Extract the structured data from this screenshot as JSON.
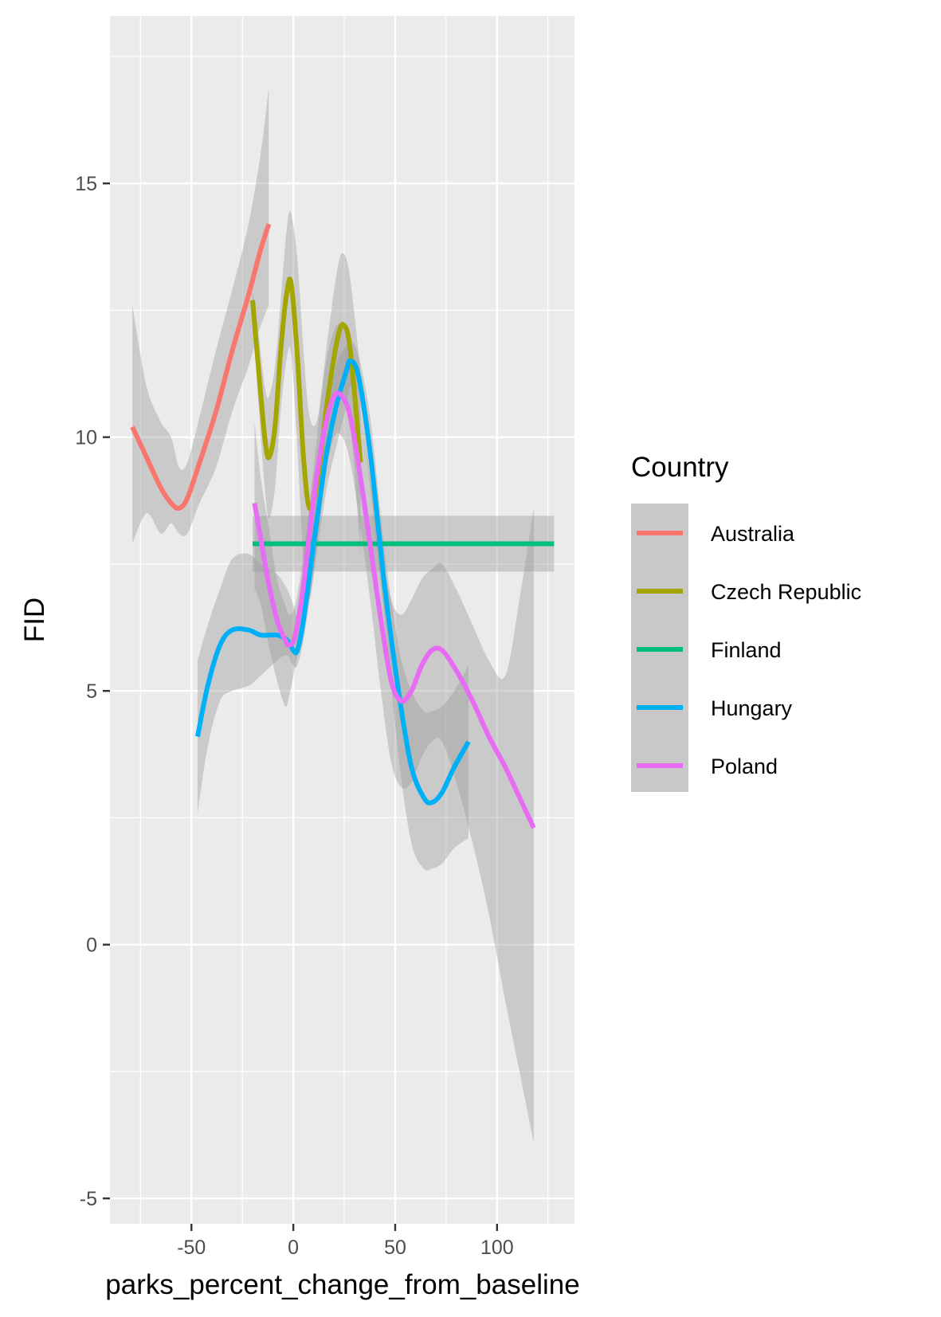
{
  "chart_data": {
    "type": "line",
    "title": "",
    "xlabel": "parks_percent_change_from_baseline",
    "ylabel": "FID",
    "xlim": [
      -90,
      138
    ],
    "ylim": [
      -5.5,
      18.3
    ],
    "x_ticks": [
      -50,
      0,
      50,
      100
    ],
    "x_tick_labels": [
      "-50",
      "0",
      "50",
      "100"
    ],
    "y_ticks": [
      -5,
      0,
      5,
      10,
      15
    ],
    "y_tick_labels": [
      "-5",
      "0",
      "5",
      "10",
      "15"
    ],
    "grid": true,
    "legend": {
      "title": "Country",
      "position": "right"
    },
    "series": [
      {
        "name": "Australia",
        "color": "#F8766D",
        "points": [
          [
            -79,
            10.2
          ],
          [
            -72,
            9.6
          ],
          [
            -65,
            9.0
          ],
          [
            -60,
            8.7
          ],
          [
            -56,
            8.6
          ],
          [
            -52,
            8.8
          ],
          [
            -46,
            9.5
          ],
          [
            -38,
            10.5
          ],
          [
            -30,
            11.7
          ],
          [
            -22,
            12.8
          ],
          [
            -16,
            13.7
          ],
          [
            -12,
            14.2
          ]
        ],
        "band_upper": [
          12.6,
          11.0,
          10.3,
          10.0,
          9.4,
          9.5,
          10.4,
          11.7,
          12.9,
          14.2,
          15.6,
          16.9
        ],
        "band_lower": [
          7.9,
          8.5,
          8.1,
          8.3,
          8.1,
          8.1,
          8.7,
          9.4,
          10.5,
          11.4,
          12.2,
          12.6
        ]
      },
      {
        "name": "Czech Republic",
        "color": "#A3A500",
        "points": [
          [
            -20,
            12.7
          ],
          [
            -17,
            11.3
          ],
          [
            -14,
            10.0
          ],
          [
            -12,
            9.6
          ],
          [
            -9,
            10.2
          ],
          [
            -6,
            11.8
          ],
          [
            -3,
            12.9
          ],
          [
            -1,
            13.0
          ],
          [
            2,
            11.6
          ],
          [
            5,
            9.6
          ],
          [
            8,
            8.6
          ],
          [
            12,
            9.2
          ],
          [
            17,
            10.8
          ],
          [
            22,
            12.0
          ],
          [
            25,
            12.2
          ],
          [
            28,
            11.7
          ],
          [
            33,
            9.5
          ]
        ],
        "band_upper": [
          12.9,
          12.0,
          11.0,
          10.8,
          11.4,
          12.8,
          14.2,
          14.4,
          13.5,
          11.7,
          10.4,
          10.4,
          12.0,
          13.4,
          13.6,
          13.1,
          11.3
        ],
        "band_lower": [
          12.5,
          10.6,
          9.0,
          8.4,
          9.0,
          10.6,
          11.6,
          11.6,
          9.8,
          7.5,
          6.8,
          8.0,
          9.6,
          10.6,
          10.8,
          10.3,
          7.7
        ]
      },
      {
        "name": "Finland",
        "color": "#00BF7D",
        "points": [
          [
            -20,
            7.9
          ],
          [
            128,
            7.9
          ]
        ],
        "band_upper": [
          8.45,
          8.45
        ],
        "band_lower": [
          7.35,
          7.35
        ]
      },
      {
        "name": "Hungary",
        "color": "#00B0F6",
        "points": [
          [
            -47,
            4.1
          ],
          [
            -42,
            5.1
          ],
          [
            -36,
            5.9
          ],
          [
            -30,
            6.2
          ],
          [
            -22,
            6.2
          ],
          [
            -16,
            6.1
          ],
          [
            -8,
            6.1
          ],
          [
            -3,
            6.0
          ],
          [
            0,
            5.8
          ],
          [
            2,
            5.8
          ],
          [
            5,
            6.4
          ],
          [
            10,
            7.9
          ],
          [
            16,
            9.6
          ],
          [
            21,
            10.6
          ],
          [
            26,
            11.3
          ],
          [
            28,
            11.5
          ],
          [
            32,
            11.2
          ],
          [
            38,
            9.6
          ],
          [
            45,
            7.0
          ],
          [
            52,
            4.9
          ],
          [
            58,
            3.5
          ],
          [
            64,
            2.9
          ],
          [
            68,
            2.8
          ],
          [
            73,
            3.0
          ],
          [
            79,
            3.5
          ],
          [
            86,
            4.0
          ]
        ],
        "band_upper": [
          5.6,
          6.3,
          7.0,
          7.6,
          7.7,
          7.5,
          7.3,
          7.0,
          6.7,
          6.5,
          7.1,
          8.6,
          10.2,
          11.4,
          11.8,
          11.9,
          11.6,
          10.3,
          7.7,
          5.8,
          5.0,
          4.6,
          4.6,
          4.7,
          5.0,
          5.5
        ],
        "band_lower": [
          2.6,
          3.9,
          4.8,
          5.0,
          5.1,
          5.3,
          5.6,
          5.7,
          5.5,
          5.5,
          6.0,
          7.3,
          8.9,
          9.8,
          10.6,
          11.0,
          10.8,
          8.9,
          6.3,
          3.6,
          2.0,
          1.5,
          1.5,
          1.6,
          1.9,
          2.1
        ]
      },
      {
        "name": "Poland",
        "color": "#E76BF3",
        "points": [
          [
            -19,
            8.7
          ],
          [
            -16,
            8.0
          ],
          [
            -12,
            7.1
          ],
          [
            -8,
            6.4
          ],
          [
            -4,
            6.0
          ],
          [
            -2,
            5.9
          ],
          [
            1,
            6.1
          ],
          [
            5,
            7.1
          ],
          [
            10,
            8.8
          ],
          [
            15,
            10.1
          ],
          [
            20,
            10.8
          ],
          [
            24,
            10.8
          ],
          [
            28,
            10.4
          ],
          [
            33,
            9.2
          ],
          [
            38,
            7.8
          ],
          [
            43,
            6.4
          ],
          [
            48,
            5.2
          ],
          [
            53,
            4.8
          ],
          [
            58,
            5.0
          ],
          [
            63,
            5.5
          ],
          [
            68,
            5.8
          ],
          [
            73,
            5.8
          ],
          [
            80,
            5.4
          ],
          [
            88,
            4.8
          ],
          [
            96,
            4.1
          ],
          [
            104,
            3.5
          ],
          [
            111,
            2.9
          ],
          [
            118,
            2.3
          ]
        ],
        "band_upper": [
          10.3,
          9.2,
          8.2,
          7.2,
          6.7,
          6.5,
          6.7,
          7.7,
          9.4,
          11.2,
          12.1,
          12.2,
          11.8,
          10.5,
          9.1,
          7.8,
          6.8,
          6.5,
          6.8,
          7.2,
          7.4,
          7.5,
          7.0,
          6.3,
          5.6,
          5.3,
          6.8,
          8.6
        ],
        "band_lower": [
          7.0,
          6.7,
          5.9,
          5.2,
          4.7,
          4.9,
          5.5,
          6.4,
          8.2,
          9.2,
          10.0,
          10.0,
          9.5,
          8.2,
          6.7,
          5.0,
          3.6,
          3.1,
          3.2,
          3.7,
          4.0,
          4.0,
          3.2,
          2.0,
          0.6,
          -1.1,
          -2.5,
          -3.9
        ]
      }
    ]
  }
}
